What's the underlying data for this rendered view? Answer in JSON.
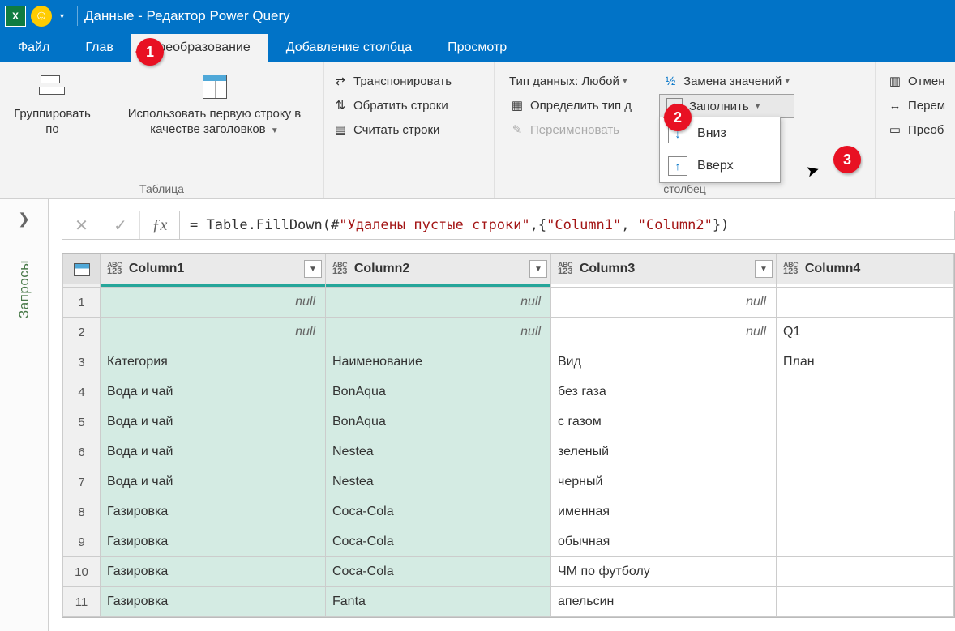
{
  "window": {
    "title": "Данные - Редактор Power Query"
  },
  "tabs": {
    "file": "Файл",
    "home": "Глав",
    "transform": "Преобразование",
    "addcol": "Добавление столбца",
    "view": "Просмотр"
  },
  "ribbon": {
    "group_table_label": "Таблица",
    "group_column_label": "столбец",
    "group_by": "Группировать по",
    "use_first_row": "Использовать первую строку в качестве заголовков",
    "transpose": "Транспонировать",
    "reverse": "Обратить строки",
    "count": "Считать строки",
    "datatype": "Тип данных: Любой",
    "detect": "Определить тип д",
    "rename": "Переименовать",
    "replace": "Замена значений",
    "fill": "Заполнить",
    "fill_down": "Вниз",
    "fill_up": "Вверх",
    "unpivot": "Отмен",
    "move": "Перем",
    "convert": "Преоб"
  },
  "callouts": {
    "c1": "1",
    "c2": "2",
    "c3": "3"
  },
  "sidebar": {
    "label": "Запросы"
  },
  "formula": {
    "prefix": "= Table.FillDown(#",
    "s1": "\"Удалены пустые строки\"",
    "mid": ",{",
    "s2": "\"Column1\"",
    "comma": ", ",
    "s3": "\"Column2\"",
    "suffix": "})"
  },
  "grid": {
    "columns": [
      "Column1",
      "Column2",
      "Column3",
      "Column4"
    ],
    "selected_cols": [
      0,
      1
    ],
    "rows": [
      {
        "n": 1,
        "cells": [
          "null",
          "null",
          "null",
          ""
        ],
        "nulls": [
          true,
          true,
          true,
          false
        ]
      },
      {
        "n": 2,
        "cells": [
          "null",
          "null",
          "null",
          "Q1"
        ],
        "nulls": [
          true,
          true,
          true,
          false
        ]
      },
      {
        "n": 3,
        "cells": [
          "Категория",
          "Наименование",
          "Вид",
          "План"
        ],
        "nulls": [
          false,
          false,
          false,
          false
        ]
      },
      {
        "n": 4,
        "cells": [
          "Вода и чай",
          "BonAqua",
          "без газа",
          ""
        ],
        "nulls": [
          false,
          false,
          false,
          false
        ]
      },
      {
        "n": 5,
        "cells": [
          "Вода и чай",
          "BonAqua",
          "с газом",
          ""
        ],
        "nulls": [
          false,
          false,
          false,
          false
        ]
      },
      {
        "n": 6,
        "cells": [
          "Вода и чай",
          "Nestea",
          "зеленый",
          ""
        ],
        "nulls": [
          false,
          false,
          false,
          false
        ]
      },
      {
        "n": 7,
        "cells": [
          "Вода и чай",
          "Nestea",
          "черный",
          ""
        ],
        "nulls": [
          false,
          false,
          false,
          false
        ]
      },
      {
        "n": 8,
        "cells": [
          "Газировка",
          "Coca-Cola",
          "именная",
          ""
        ],
        "nulls": [
          false,
          false,
          false,
          false
        ]
      },
      {
        "n": 9,
        "cells": [
          "Газировка",
          "Coca-Cola",
          "обычная",
          ""
        ],
        "nulls": [
          false,
          false,
          false,
          false
        ]
      },
      {
        "n": 10,
        "cells": [
          "Газировка",
          "Coca-Cola",
          "ЧМ по футболу",
          ""
        ],
        "nulls": [
          false,
          false,
          false,
          false
        ]
      },
      {
        "n": 11,
        "cells": [
          "Газировка",
          "Fanta",
          "апельсин",
          ""
        ],
        "nulls": [
          false,
          false,
          false,
          false
        ]
      }
    ]
  },
  "colors": {
    "accent": "#0173c7",
    "callout": "#e81123",
    "sel_header": "#26a69a",
    "sel_cell": "#d4ebe3"
  }
}
